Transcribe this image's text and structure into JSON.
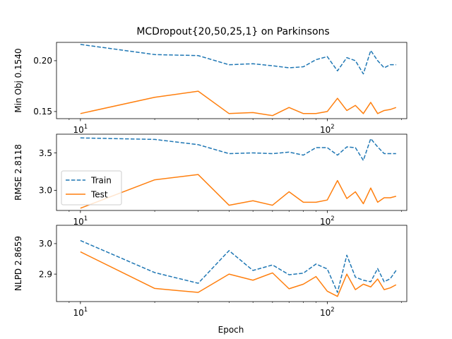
{
  "chart_data": {
    "type": "line",
    "title": "MCDropout{20,50,25,1} on Parkinsons",
    "xlabel": "Epoch",
    "xscale": "log",
    "xlim": [
      8,
      210
    ],
    "xticks": [
      {
        "value": 10,
        "base": "10",
        "exp": "1"
      },
      {
        "value": 100,
        "base": "10",
        "exp": "2"
      }
    ],
    "x": [
      10,
      20,
      30,
      40,
      50,
      60,
      70,
      80,
      90,
      100,
      110,
      120,
      130,
      140,
      150,
      160,
      170,
      180,
      190
    ],
    "legend": {
      "location": "center-left",
      "panel": 1,
      "entries": [
        "Train",
        "Test"
      ]
    },
    "colors": {
      "Train": "#1f77b4",
      "Test": "#ff7f0e"
    },
    "panels": [
      {
        "ylabel": "Min Obj 0.1540",
        "ylim": [
          0.143,
          0.218
        ],
        "yticks": [
          {
            "value": 0.15,
            "label": "0.15"
          },
          {
            "value": 0.2,
            "label": "0.20"
          }
        ],
        "series": [
          {
            "name": "Train",
            "style": "dashed",
            "values": [
              0.216,
              0.206,
              0.205,
              0.196,
              0.197,
              0.195,
              0.193,
              0.194,
              0.201,
              0.204,
              0.19,
              0.203,
              0.2,
              0.187,
              0.21,
              0.2,
              0.193,
              0.196,
              0.196
            ]
          },
          {
            "name": "Test",
            "style": "solid",
            "values": [
              0.148,
              0.164,
              0.17,
              0.148,
              0.149,
              0.146,
              0.154,
              0.148,
              0.148,
              0.15,
              0.163,
              0.151,
              0.156,
              0.148,
              0.159,
              0.148,
              0.151,
              0.152,
              0.154
            ]
          }
        ]
      },
      {
        "ylabel": "RMSE 2.8118",
        "ylim": [
          2.73,
          3.75
        ],
        "yticks": [
          {
            "value": 3.0,
            "label": "3.0"
          },
          {
            "value": 3.5,
            "label": "3.5"
          }
        ],
        "series": [
          {
            "name": "Train",
            "style": "dashed",
            "values": [
              3.7,
              3.68,
              3.61,
              3.49,
              3.5,
              3.49,
              3.51,
              3.47,
              3.57,
              3.57,
              3.47,
              3.58,
              3.57,
              3.4,
              3.69,
              3.58,
              3.49,
              3.49,
              3.49
            ]
          },
          {
            "name": "Test",
            "style": "solid",
            "values": [
              2.76,
              3.14,
              3.21,
              2.8,
              2.86,
              2.8,
              2.98,
              2.84,
              2.84,
              2.87,
              3.13,
              2.89,
              2.98,
              2.82,
              3.03,
              2.84,
              2.9,
              2.9,
              2.92
            ]
          }
        ]
      },
      {
        "ylabel": "NLPD 2.8659",
        "ylim": [
          2.81,
          3.06
        ],
        "yticks": [
          {
            "value": 2.9,
            "label": "2.9"
          },
          {
            "value": 3.0,
            "label": "3.0"
          }
        ],
        "series": [
          {
            "name": "Train",
            "style": "dashed",
            "values": [
              3.01,
              2.905,
              2.87,
              2.977,
              2.912,
              2.93,
              2.898,
              2.903,
              2.933,
              2.917,
              2.84,
              2.962,
              2.89,
              2.88,
              2.875,
              2.918,
              2.875,
              2.885,
              2.912
            ]
          },
          {
            "name": "Test",
            "style": "solid",
            "values": [
              2.973,
              2.853,
              2.84,
              2.9,
              2.88,
              2.904,
              2.852,
              2.867,
              2.892,
              2.844,
              2.827,
              2.9,
              2.849,
              2.867,
              2.858,
              2.884,
              2.849,
              2.855,
              2.865
            ]
          }
        ]
      }
    ]
  }
}
